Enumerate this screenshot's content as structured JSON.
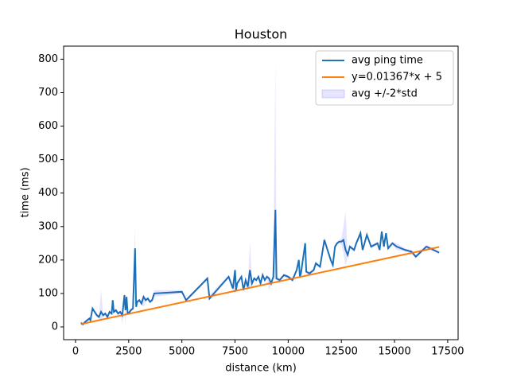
{
  "chart_data": {
    "type": "line",
    "title": "Houston",
    "x_label": "distance (km)",
    "y_label": "time (ms)",
    "xlim": [
      -560,
      17990
    ],
    "ylim": [
      -38,
      839
    ],
    "xticks": [
      0,
      2500,
      5000,
      7500,
      10000,
      12500,
      15000,
      17500
    ],
    "yticks": [
      0,
      100,
      200,
      300,
      400,
      500,
      600,
      700,
      800
    ],
    "legend": "upper right",
    "series": [
      {
        "name": "avg ping time",
        "color": "#1f77b4",
        "x": [
          250,
          350,
          450,
          550,
          650,
          700,
          800,
          900,
          1000,
          1100,
          1200,
          1300,
          1400,
          1500,
          1600,
          1700,
          1750,
          1800,
          1900,
          2000,
          2100,
          2200,
          2300,
          2350,
          2400,
          2450,
          2550,
          2600,
          2700,
          2800,
          2850,
          2900,
          3000,
          3100,
          3200,
          3300,
          3400,
          3500,
          3600,
          3700,
          5000,
          5200,
          6200,
          6300,
          7200,
          7400,
          7500,
          7550,
          7600,
          7800,
          7900,
          8000,
          8100,
          8200,
          8300,
          8400,
          8500,
          8600,
          8700,
          8800,
          8900,
          9000,
          9100,
          9200,
          9300,
          9400,
          9450,
          9600,
          9800,
          10000,
          10200,
          10300,
          10400,
          10500,
          10550,
          10600,
          10800,
          10850,
          11000,
          11200,
          11300,
          11500,
          11700,
          11900,
          12000,
          12100,
          12200,
          12300,
          12400,
          12500,
          12600,
          12700,
          12800,
          12900,
          13100,
          13200,
          13400,
          13500,
          13700,
          13900,
          14200,
          14300,
          14400,
          14500,
          14600,
          14700,
          14900,
          15100,
          15500,
          15800,
          16000,
          16500,
          17100
        ],
        "values": [
          12,
          8,
          15,
          20,
          25,
          20,
          55,
          45,
          35,
          30,
          45,
          35,
          40,
          30,
          45,
          40,
          80,
          45,
          50,
          40,
          45,
          35,
          95,
          50,
          90,
          40,
          45,
          50,
          55,
          235,
          60,
          75,
          80,
          70,
          90,
          80,
          85,
          75,
          80,
          100,
          105,
          80,
          145,
          85,
          150,
          115,
          170,
          110,
          130,
          150,
          110,
          140,
          120,
          170,
          130,
          145,
          140,
          150,
          130,
          155,
          140,
          150,
          145,
          130,
          150,
          350,
          145,
          140,
          155,
          150,
          140,
          155,
          170,
          200,
          150,
          160,
          250,
          165,
          160,
          170,
          190,
          180,
          260,
          220,
          200,
          185,
          240,
          250,
          255,
          255,
          260,
          230,
          215,
          240,
          230,
          250,
          280,
          230,
          275,
          240,
          250,
          230,
          285,
          240,
          280,
          235,
          250,
          240,
          230,
          225,
          210,
          240,
          222
        ]
      },
      {
        "name": "y=0.01367*x + 5",
        "color": "#ff7f0e",
        "x": [
          250,
          17100
        ],
        "values": [
          8.4,
          238.8
        ]
      },
      {
        "name": "avg +/-2*std",
        "color": "rgba(0,0,255,0.1)",
        "x": [
          250,
          350,
          450,
          550,
          650,
          700,
          800,
          900,
          1000,
          1100,
          1200,
          1300,
          1400,
          1500,
          1600,
          1700,
          1750,
          1800,
          1900,
          2000,
          2100,
          2200,
          2300,
          2350,
          2400,
          2450,
          2550,
          2600,
          2700,
          2800,
          2850,
          2900,
          3000,
          3100,
          3200,
          3300,
          3400,
          3500,
          3600,
          3700,
          5000,
          5200,
          6200,
          6300,
          7200,
          7400,
          7500,
          7550,
          7600,
          7800,
          7900,
          8000,
          8100,
          8200,
          8300,
          8400,
          8500,
          8600,
          8700,
          8800,
          8900,
          9000,
          9100,
          9200,
          9300,
          9400,
          9450,
          9600,
          9800,
          10000,
          10200,
          10300,
          10400,
          10500,
          10550,
          10600,
          10800,
          10850,
          11000,
          11200,
          11300,
          11500,
          11700,
          11900,
          12000,
          12100,
          12200,
          12300,
          12400,
          12500,
          12600,
          12700,
          12800,
          12900,
          13100,
          13200,
          13400,
          13500,
          13700,
          13900,
          14200,
          14300,
          14400,
          14500,
          14600,
          14700,
          14900,
          15100,
          15500,
          15800,
          16000,
          16500,
          17100
        ],
        "upper": [
          16,
          12,
          19,
          24,
          30,
          24,
          60,
          50,
          40,
          35,
          110,
          40,
          45,
          35,
          50,
          45,
          85,
          50,
          55,
          45,
          50,
          40,
          100,
          55,
          95,
          45,
          50,
          55,
          60,
          300,
          65,
          80,
          85,
          75,
          95,
          85,
          90,
          80,
          85,
          110,
          110,
          85,
          150,
          95,
          155,
          120,
          175,
          115,
          135,
          155,
          115,
          145,
          125,
          255,
          135,
          150,
          145,
          155,
          135,
          160,
          145,
          155,
          150,
          135,
          155,
          800,
          150,
          145,
          160,
          155,
          145,
          160,
          175,
          205,
          155,
          165,
          255,
          170,
          165,
          175,
          195,
          185,
          270,
          225,
          205,
          190,
          245,
          255,
          260,
          265,
          300,
          345,
          220,
          245,
          235,
          255,
          290,
          235,
          280,
          245,
          255,
          235,
          290,
          245,
          285,
          240,
          255,
          250,
          235,
          230,
          215,
          245,
          226
        ],
        "lower": [
          8,
          4,
          11,
          16,
          20,
          16,
          50,
          40,
          30,
          25,
          20,
          30,
          35,
          25,
          40,
          35,
          75,
          40,
          45,
          35,
          40,
          10,
          90,
          0,
          85,
          35,
          40,
          45,
          50,
          170,
          55,
          70,
          75,
          65,
          60,
          75,
          80,
          70,
          75,
          90,
          100,
          75,
          140,
          80,
          145,
          110,
          100,
          105,
          125,
          145,
          105,
          135,
          115,
          120,
          125,
          140,
          135,
          145,
          125,
          150,
          135,
          145,
          110,
          125,
          145,
          140,
          140,
          135,
          150,
          145,
          135,
          150,
          165,
          195,
          145,
          155,
          245,
          160,
          155,
          165,
          185,
          175,
          250,
          215,
          195,
          180,
          235,
          245,
          250,
          245,
          220,
          180,
          210,
          235,
          225,
          245,
          270,
          225,
          270,
          235,
          245,
          225,
          280,
          235,
          275,
          230,
          245,
          230,
          225,
          220,
          205,
          235,
          218
        ]
      }
    ]
  }
}
